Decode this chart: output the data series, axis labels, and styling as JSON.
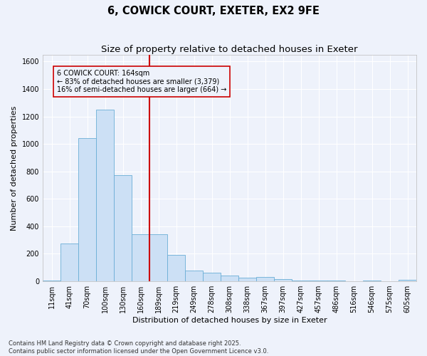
{
  "title_line1": "6, COWICK COURT, EXETER, EX2 9FE",
  "title_line2": "Size of property relative to detached houses in Exeter",
  "xlabel": "Distribution of detached houses by size in Exeter",
  "ylabel": "Number of detached properties",
  "categories": [
    "11sqm",
    "41sqm",
    "70sqm",
    "100sqm",
    "130sqm",
    "160sqm",
    "189sqm",
    "219sqm",
    "249sqm",
    "278sqm",
    "308sqm",
    "338sqm",
    "367sqm",
    "397sqm",
    "427sqm",
    "457sqm",
    "486sqm",
    "516sqm",
    "546sqm",
    "575sqm",
    "605sqm"
  ],
  "values": [
    5,
    275,
    1040,
    1250,
    770,
    340,
    340,
    190,
    80,
    65,
    40,
    25,
    30,
    15,
    5,
    5,
    5,
    0,
    5,
    0,
    10
  ],
  "bar_color": "#cce0f5",
  "bar_edge_color": "#6aaed6",
  "vline_x": 5.5,
  "vline_color": "#cc0000",
  "annotation_text": "6 COWICK COURT: 164sqm\n← 83% of detached houses are smaller (3,379)\n16% of semi-detached houses are larger (664) →",
  "box_color": "#cc0000",
  "footer_line1": "Contains HM Land Registry data © Crown copyright and database right 2025.",
  "footer_line2": "Contains public sector information licensed under the Open Government Licence v3.0.",
  "ylim": [
    0,
    1650
  ],
  "yticks": [
    0,
    200,
    400,
    600,
    800,
    1000,
    1200,
    1400,
    1600
  ],
  "bg_color": "#eef2fb",
  "grid_color": "#ffffff",
  "title_fontsize": 10.5,
  "subtitle_fontsize": 9.5,
  "axis_fontsize": 8,
  "tick_fontsize": 7,
  "footer_fontsize": 6,
  "annot_fontsize": 7
}
